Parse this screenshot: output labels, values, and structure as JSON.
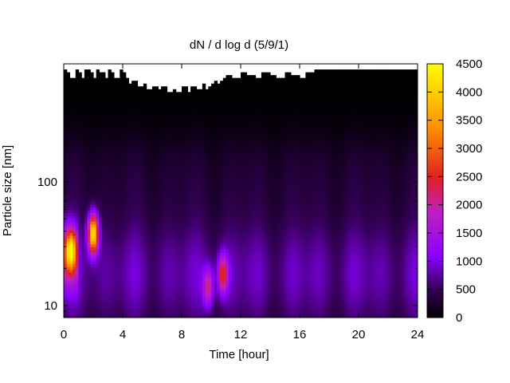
{
  "chart_data": {
    "type": "heatmap",
    "title": "dN / d log d (5/9/1)",
    "xlabel": "Time [hour]",
    "ylabel": "Particle size [nm]",
    "xlim": [
      0,
      24
    ],
    "ylim_log": [
      8,
      900
    ],
    "y_scale": "log",
    "x_ticks": [
      0,
      4,
      8,
      12,
      16,
      20,
      24
    ],
    "y_ticks": [
      10,
      100
    ],
    "colorbar": {
      "min": 0,
      "max": 4500,
      "ticks": [
        0,
        500,
        1000,
        1500,
        2000,
        2500,
        3000,
        3500,
        4000,
        4500
      ],
      "colormap": [
        "#000000",
        "#3a0060",
        "#8a00ff",
        "#c020c0",
        "#e02020",
        "#ff9000",
        "#ffff00"
      ]
    },
    "features": [
      {
        "time": 0.5,
        "size": 28,
        "peak": 2800
      },
      {
        "time": 2.0,
        "size": 38,
        "peak": 3900
      },
      {
        "time": 10.8,
        "size": 18,
        "peak": 1900
      },
      {
        "time": 9.8,
        "size": 14,
        "peak": 1500
      }
    ]
  }
}
